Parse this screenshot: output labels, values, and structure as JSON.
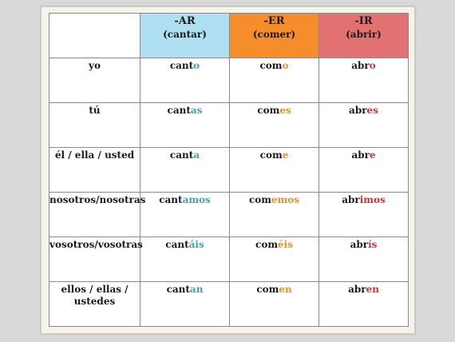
{
  "headers": {
    "blank": "",
    "ar": {
      "title": "-AR",
      "sub": "(cantar)"
    },
    "er": {
      "title": "-ER",
      "sub": "(comer)"
    },
    "ir": {
      "title": "-IR",
      "sub": "(abrir)"
    }
  },
  "colors": {
    "ar_header": "#aee0f2",
    "er_header": "#f58d2b",
    "ir_header": "#e27272",
    "ar_ending": "#4aa0b0",
    "er_ending": "#e8922e",
    "ir_ending": "#c63838"
  },
  "rows": [
    {
      "pronoun": "yo",
      "ar": {
        "stem": "cant",
        "end": "o"
      },
      "er": {
        "stem": "com",
        "end": "o"
      },
      "ir": {
        "stem": "abr",
        "end": "o"
      }
    },
    {
      "pronoun": "tú",
      "ar": {
        "stem": "cant",
        "end": "as"
      },
      "er": {
        "stem": "com",
        "end": "es"
      },
      "ir": {
        "stem": "abr",
        "end": "es"
      }
    },
    {
      "pronoun": "él / ella / usted",
      "ar": {
        "stem": "cant",
        "end": "a"
      },
      "er": {
        "stem": "com",
        "end": "e"
      },
      "ir": {
        "stem": "abr",
        "end": "e"
      }
    },
    {
      "pronoun": "nosotros/nosotras",
      "ar": {
        "stem": "cant",
        "end": "amos"
      },
      "er": {
        "stem": "com",
        "end": "emos"
      },
      "ir": {
        "stem": "abr",
        "end": "imos"
      }
    },
    {
      "pronoun": "vosotros/vosotras",
      "ar": {
        "stem": "cant",
        "end": "áis"
      },
      "er": {
        "stem": "com",
        "end": "éis"
      },
      "ir": {
        "stem": "abr",
        "end": "ís"
      }
    },
    {
      "pronoun_line1": "ellos / ellas /",
      "pronoun_line2": "ustedes",
      "ar": {
        "stem": "cant",
        "end": "an"
      },
      "er": {
        "stem": "com",
        "end": "en"
      },
      "ir": {
        "stem": "abr",
        "end": "en"
      }
    }
  ]
}
